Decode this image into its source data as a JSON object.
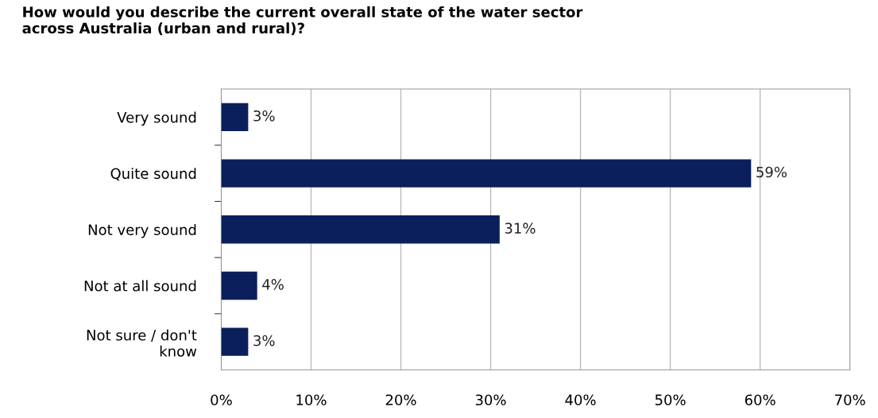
{
  "chart_data": {
    "type": "bar",
    "orientation": "horizontal",
    "title": "How would you describe the current overall state of the water sector\nacross Australia (urban and rural)?",
    "categories": [
      "Very sound",
      "Quite sound",
      "Not very sound",
      "Not at all sound",
      "Not sure / don't\nknow"
    ],
    "values": [
      3,
      59,
      31,
      4,
      3
    ],
    "value_labels": [
      "3%",
      "59%",
      "31%",
      "4%",
      "3%"
    ],
    "color": "#0b1f5c",
    "xlim": [
      0,
      70
    ],
    "xticks": [
      {
        "value": 0,
        "label": "0%"
      },
      {
        "value": 10,
        "label": "10%"
      },
      {
        "value": 20,
        "label": "20%"
      },
      {
        "value": 30,
        "label": "30%"
      },
      {
        "value": 40,
        "label": "40%"
      },
      {
        "value": 50,
        "label": "50%"
      },
      {
        "value": 60,
        "label": "60%"
      },
      {
        "value": 70,
        "label": "70%"
      }
    ],
    "grid": "x",
    "legend": false
  }
}
